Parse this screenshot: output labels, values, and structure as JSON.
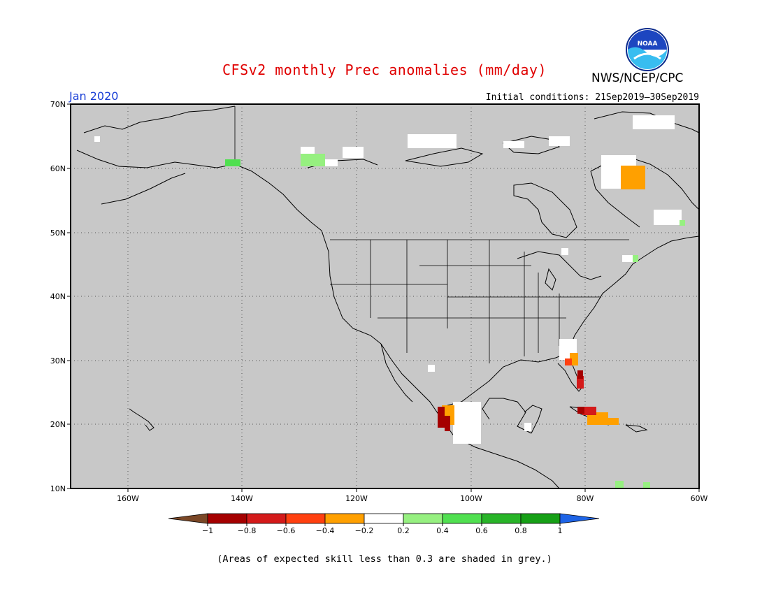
{
  "header": {
    "title": "CFSv2 monthly Prec anomalies (mm/day)",
    "organization": "NWS/NCEP/CPC",
    "logo_text": "NOAA",
    "month": "Jan 2020",
    "initial_conditions": "Initial conditions: 21Sep2019–30Sep2019"
  },
  "map": {
    "background_color": "#c8c8c8",
    "lat_labels": [
      "70N",
      "60N",
      "50N",
      "40N",
      "30N",
      "20N",
      "10N"
    ],
    "lon_labels": [
      "160W",
      "140W",
      "120W",
      "100W",
      "80W",
      "60W"
    ]
  },
  "colorbar": {
    "labels": [
      "−1",
      "−0.8",
      "−0.6",
      "−0.4",
      "−0.2",
      "0.2",
      "0.4",
      "0.6",
      "0.8",
      "1"
    ],
    "colors": [
      "#7a4726",
      "#a50000",
      "#d41a1a",
      "#ff4010",
      "#ffa000",
      "#ffffff",
      "#96f080",
      "#50e050",
      "#28b428",
      "#16a016",
      "#1e64e6"
    ]
  },
  "footer": {
    "note": "(Areas of expected skill less than 0.3 are shaded in grey.)"
  },
  "anomaly_regions": [
    {
      "name": "Alaska-Yukon border",
      "category": "0.4 to 0.6",
      "color": "#50e050"
    },
    {
      "name": "Northwest Canada",
      "category": "0.2 to 0.4",
      "color": "#96f080"
    },
    {
      "name": "Northern Quebec",
      "category": "-0.4 to -0.2",
      "color": "#ffa000"
    },
    {
      "name": "Florida",
      "category": "-1 to -0.8",
      "color": "#a50000"
    },
    {
      "name": "Western Mexico",
      "category": "-1 to -0.8",
      "color": "#a50000"
    },
    {
      "name": "Cuba",
      "category": "-0.8 to -0.6",
      "color": "#d41a1a"
    },
    {
      "name": "Haiti",
      "category": "-0.4 to -0.2",
      "color": "#ffa000"
    }
  ]
}
